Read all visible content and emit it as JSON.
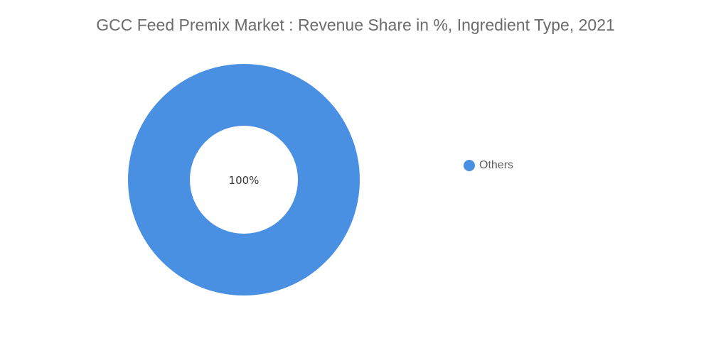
{
  "chart_data": {
    "type": "pie",
    "title": "GCC Feed Premix Market : Revenue Share in %, Ingredient Type, 2021",
    "categories": [
      "Others"
    ],
    "values": [
      100
    ],
    "data_labels": [
      "100%"
    ],
    "colors": [
      "#4a90e2"
    ],
    "donut": true,
    "legend_position": "right"
  }
}
